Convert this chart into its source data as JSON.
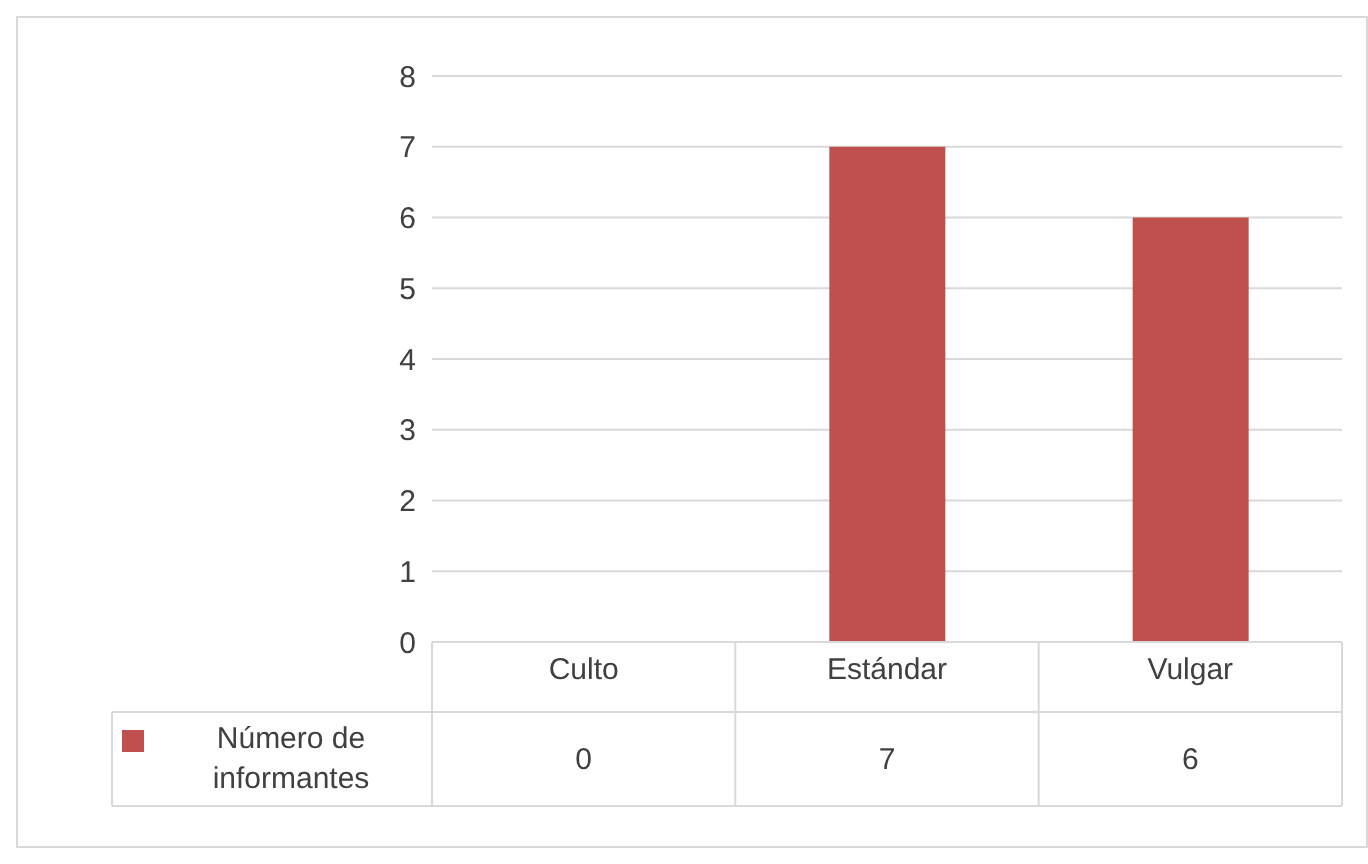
{
  "chart_data": {
    "type": "bar",
    "categories": [
      "Culto",
      "Estándar",
      "Vulgar"
    ],
    "series": [
      {
        "name": "Número de informantes",
        "color": "#c0504d",
        "values": [
          0,
          7,
          6
        ]
      }
    ],
    "ylim": [
      0,
      8
    ],
    "yticks": [
      0,
      1,
      2,
      3,
      4,
      5,
      6,
      7,
      8
    ],
    "grid": "y",
    "legend": "bottom",
    "data_labels": true
  }
}
